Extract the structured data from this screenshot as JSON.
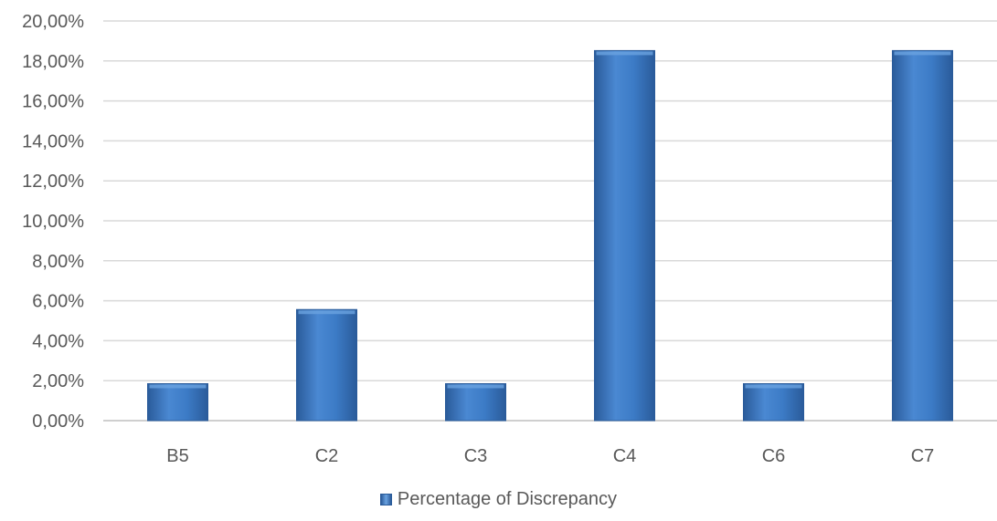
{
  "chart_data": {
    "type": "bar",
    "categories": [
      "B5",
      "C2",
      "C3",
      "C4",
      "C6",
      "C7"
    ],
    "series": [
      {
        "name": "Percentage of Discrepancy",
        "values": [
          1.85,
          5.56,
          1.85,
          18.52,
          1.85,
          18.52
        ],
        "color": "#3c7bc6"
      }
    ],
    "ylim": [
      0,
      20
    ],
    "ytick_step": 2,
    "ytick_labels": [
      "0,00%",
      "2,00%",
      "4,00%",
      "6,00%",
      "8,00%",
      "10,00%",
      "12,00%",
      "14,00%",
      "16,00%",
      "18,00%",
      "20,00%"
    ],
    "grid": true,
    "legend_position": "bottom",
    "title": "",
    "xlabel": "",
    "ylabel": ""
  },
  "colors": {
    "bar": "#3c7bc6",
    "bar_dark": "#2a5b9a",
    "bar_light": "#6aa2e0",
    "grid": "#d9d9d9",
    "axis_text": "#595959"
  }
}
